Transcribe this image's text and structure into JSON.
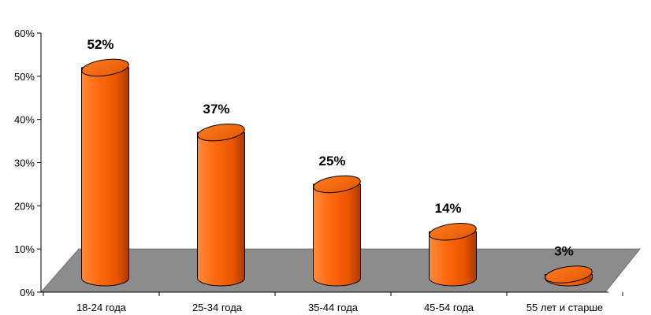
{
  "chart_data": {
    "type": "bar",
    "categories": [
      "18-24 года",
      "25-34 года",
      "35-44 года",
      "45-54 года",
      "55 лет и старше"
    ],
    "values": [
      52,
      37,
      25,
      14,
      3
    ],
    "value_labels": [
      "52%",
      "37%",
      "25%",
      "14%",
      "3%"
    ],
    "y_ticks": [
      "0%",
      "10%",
      "20%",
      "30%",
      "40%",
      "50%",
      "60%"
    ],
    "ylim": [
      0,
      60
    ],
    "title": "",
    "xlabel": "",
    "ylabel": "",
    "grid": false,
    "legend": "none",
    "style": "3d-cylinder"
  },
  "colors": {
    "bar": "#ff6600",
    "bar_dark": "#b84000",
    "bar_light": "#ff9a4d",
    "floor": "#8c8c8c"
  }
}
